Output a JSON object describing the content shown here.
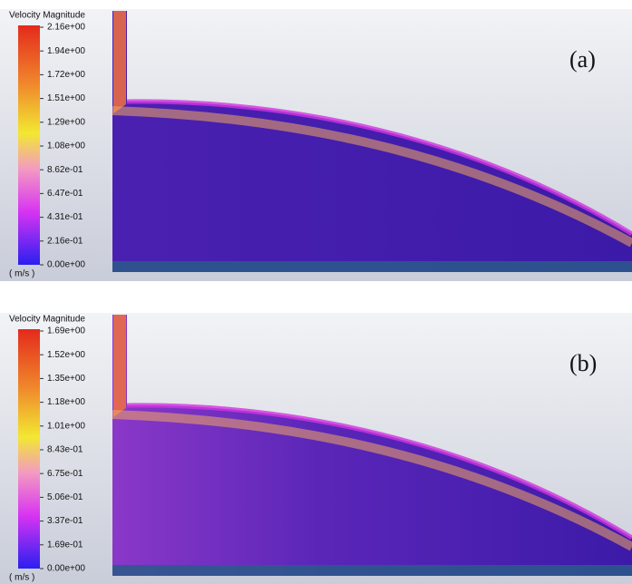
{
  "panels": [
    {
      "legend_title": "Velocity Magnitude",
      "unit": "( m/s )",
      "label": "(a)",
      "ticks": [
        "2.16e+00",
        "1.94e+00",
        "1.72e+00",
        "1.51e+00",
        "1.29e+00",
        "1.08e+00",
        "8.62e-01",
        "6.47e-01",
        "4.31e-01",
        "2.16e-01",
        "0.00e+00"
      ]
    },
    {
      "legend_title": "Velocity Magnitude",
      "unit": "( m/s )",
      "label": "(b)",
      "ticks": [
        "1.69e+00",
        "1.52e+00",
        "1.35e+00",
        "1.18e+00",
        "1.01e+00",
        "8.43e-01",
        "6.75e-01",
        "5.06e-01",
        "3.37e-01",
        "1.69e-01",
        "0.00e+00"
      ]
    }
  ]
}
